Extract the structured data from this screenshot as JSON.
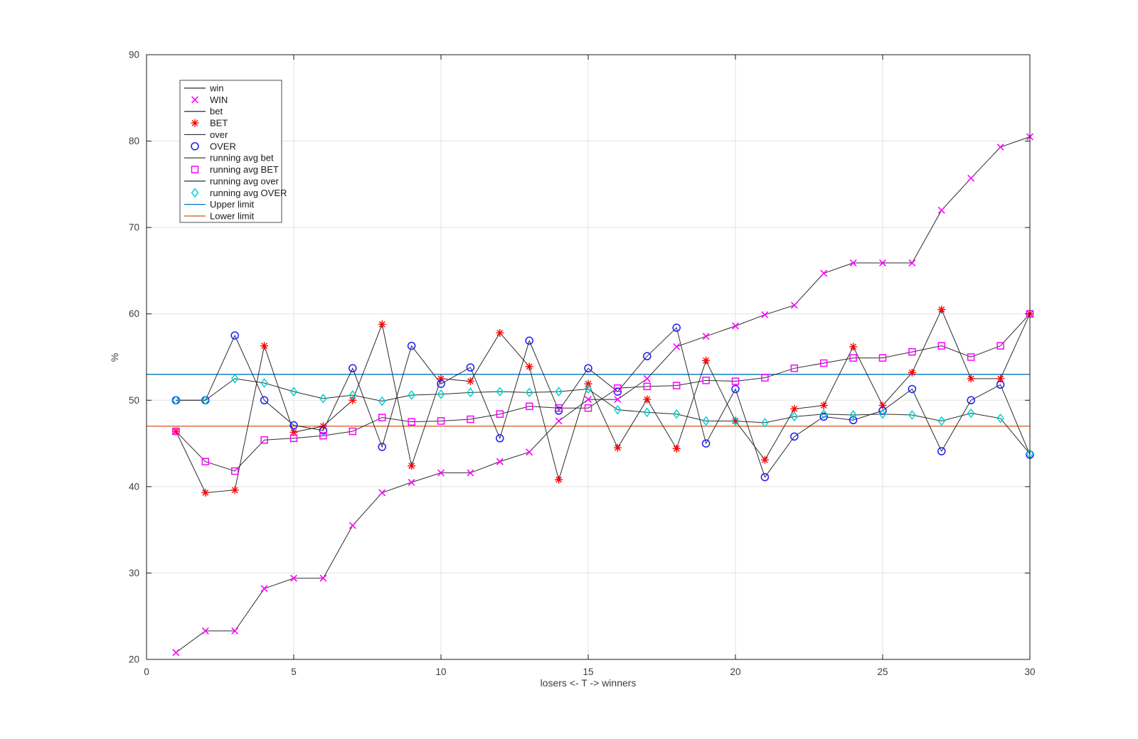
{
  "figure": {
    "background": "#ffffff"
  },
  "chart_data": {
    "type": "line",
    "title": "",
    "xlabel": "losers <- T -> winners",
    "ylabel": "%",
    "xlim": [
      0,
      30
    ],
    "ylim": [
      20,
      90
    ],
    "xticks": [
      0,
      5,
      10,
      15,
      20,
      25,
      30
    ],
    "yticks": [
      20,
      30,
      40,
      50,
      60,
      70,
      80,
      90
    ],
    "grid": true,
    "legend_position": "top-left",
    "x": [
      1,
      2,
      3,
      4,
      5,
      6,
      7,
      8,
      9,
      10,
      11,
      12,
      13,
      14,
      15,
      16,
      17,
      18,
      19,
      20,
      21,
      22,
      23,
      24,
      25,
      26,
      27,
      28,
      29,
      30
    ],
    "series": [
      {
        "name": "win",
        "marker_name": "WIN",
        "marker": "x",
        "marker_color": "#ff00ff",
        "line_color": "#2b2b2b",
        "values": [
          20.8,
          23.3,
          23.3,
          28.2,
          29.4,
          29.4,
          35.5,
          39.3,
          40.5,
          41.6,
          41.6,
          42.9,
          44.0,
          47.6,
          50.1,
          50.1,
          52.5,
          56.2,
          57.4,
          58.6,
          59.9,
          61.0,
          64.7,
          65.9,
          65.9,
          65.9,
          72.0,
          75.7,
          79.3,
          80.5
        ]
      },
      {
        "name": "bet",
        "marker_name": "BET",
        "marker": "asterisk",
        "marker_color": "#ff0000",
        "line_color": "#2b2b2b",
        "values": [
          46.4,
          39.3,
          39.6,
          56.3,
          46.3,
          47.0,
          50.0,
          58.8,
          42.4,
          52.5,
          52.2,
          57.8,
          53.9,
          40.8,
          51.9,
          44.5,
          50.1,
          44.4,
          54.6,
          47.6,
          43.1,
          49.0,
          49.4,
          56.2,
          49.4,
          53.2,
          60.5,
          52.5,
          52.5,
          60.0
        ]
      },
      {
        "name": "over",
        "marker_name": "OVER",
        "marker": "circle",
        "marker_color": "#1a1aff",
        "line_color": "#2b2b2b",
        "values": [
          50.0,
          50.0,
          57.5,
          50.0,
          47.1,
          46.5,
          53.7,
          44.6,
          56.3,
          51.9,
          53.8,
          45.6,
          56.9,
          48.8,
          53.7,
          51.0,
          55.1,
          58.4,
          45.0,
          51.3,
          41.1,
          45.8,
          48.1,
          47.7,
          48.8,
          51.3,
          44.1,
          50.0,
          51.8,
          43.7
        ]
      },
      {
        "name": "running avg bet",
        "marker_name": "running avg BET",
        "marker": "square",
        "marker_color": "#ff00ff",
        "line_color": "#2b2b2b",
        "values": [
          46.4,
          42.9,
          41.8,
          45.4,
          45.6,
          45.9,
          46.4,
          48.0,
          47.5,
          47.6,
          47.8,
          48.4,
          49.3,
          49.1,
          49.1,
          51.4,
          51.6,
          51.7,
          52.3,
          52.2,
          52.6,
          53.7,
          54.3,
          54.9,
          54.9,
          55.6,
          56.3,
          55.0,
          56.3,
          60.0
        ]
      },
      {
        "name": "running avg over",
        "marker_name": "running avg OVER",
        "marker": "diamond",
        "marker_color": "#00d5d5",
        "line_color": "#2b2b2b",
        "values": [
          50.0,
          50.0,
          52.5,
          52.0,
          51.0,
          50.2,
          50.6,
          49.9,
          50.6,
          50.7,
          50.9,
          51.0,
          50.9,
          51.0,
          51.3,
          48.9,
          48.6,
          48.4,
          47.6,
          47.6,
          47.4,
          48.1,
          48.4,
          48.3,
          48.4,
          48.3,
          47.6,
          48.5,
          47.9,
          43.8
        ]
      }
    ],
    "limit_lines": [
      {
        "name": "Upper limit",
        "value": 53.0,
        "color": "#0072bd"
      },
      {
        "name": "Lower limit",
        "value": 47.0,
        "color": "#d95319"
      }
    ],
    "legend": {
      "entries": [
        {
          "label": "win",
          "sample": "line",
          "color": "#2b2b2b"
        },
        {
          "label": "WIN",
          "sample": "marker",
          "marker": "x",
          "color": "#ff00ff"
        },
        {
          "label": "bet",
          "sample": "line",
          "color": "#2b2b2b"
        },
        {
          "label": "BET",
          "sample": "marker",
          "marker": "asterisk",
          "color": "#ff0000"
        },
        {
          "label": "over",
          "sample": "line",
          "color": "#2b2b2b"
        },
        {
          "label": "OVER",
          "sample": "marker",
          "marker": "circle",
          "color": "#1a1aff"
        },
        {
          "label": "running avg bet",
          "sample": "line",
          "color": "#2b2b2b"
        },
        {
          "label": "running avg BET",
          "sample": "marker",
          "marker": "square",
          "color": "#ff00ff"
        },
        {
          "label": "running avg over",
          "sample": "line",
          "color": "#2b2b2b"
        },
        {
          "label": "running avg OVER",
          "sample": "marker",
          "marker": "diamond",
          "color": "#00d5d5"
        },
        {
          "label": "Upper limit",
          "sample": "line",
          "color": "#0072bd"
        },
        {
          "label": "Lower limit",
          "sample": "line",
          "color": "#d95319"
        }
      ]
    }
  },
  "style": {
    "grid_color": "#e3e3e3",
    "axis_color": "#1a1a1a",
    "tick_label_color": "#3d3d3d",
    "legend_border_color": "#4d4d4d",
    "legend_text_color": "#1a1a1a"
  }
}
